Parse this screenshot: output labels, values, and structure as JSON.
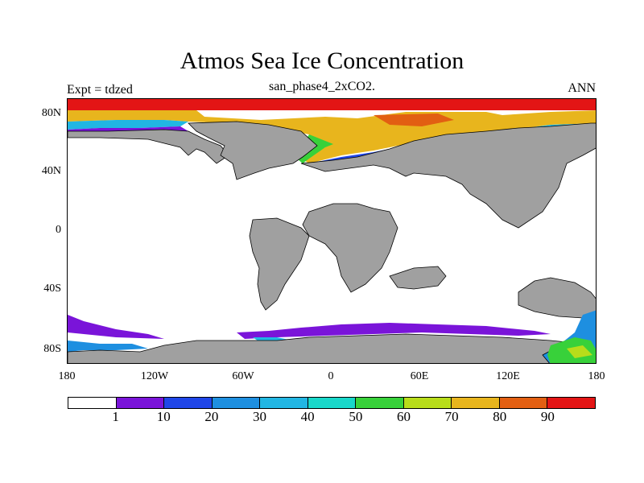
{
  "title": "Atmos Sea Ice Concentration",
  "subtitle": "san_phase4_2xCO2.",
  "left_label": "Expt = tdzed",
  "right_label": "ANN",
  "lat_labels": [
    "80N",
    "40N",
    "0",
    "40S",
    "80S"
  ],
  "lon_labels": [
    "180",
    "120W",
    "60W",
    "0",
    "60E",
    "120E",
    "180"
  ],
  "colorbar": {
    "colors": [
      "#ffffff",
      "#7a14d9",
      "#1f46e8",
      "#1e8fe0",
      "#21b6e3",
      "#18d7c9",
      "#38d13a",
      "#b8dd1a",
      "#e8b51d",
      "#e25f12",
      "#e31515"
    ],
    "labels": [
      "1",
      "10",
      "20",
      "30",
      "40",
      "50",
      "60",
      "70",
      "80",
      "90"
    ]
  }
}
